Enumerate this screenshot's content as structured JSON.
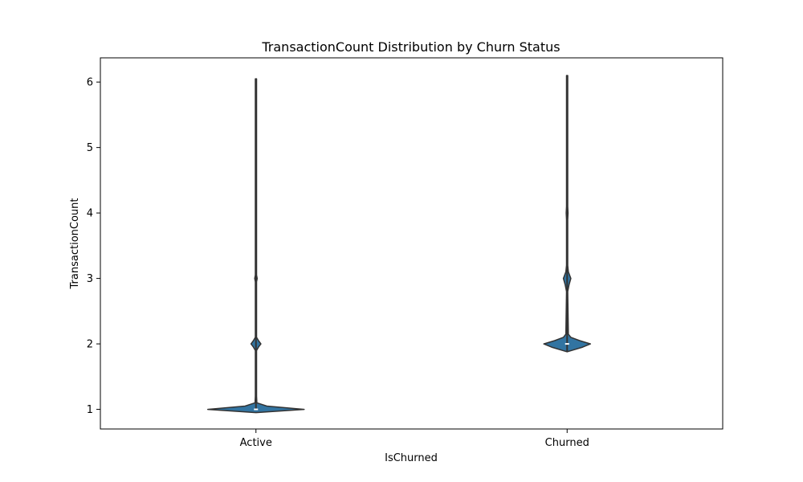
{
  "chart_data": {
    "type": "violin",
    "title": "TransactionCount Distribution by Churn Status",
    "xlabel": "IsChurned",
    "ylabel": "TransactionCount",
    "categories": [
      "Active",
      "Churned"
    ],
    "ylim": [
      0.7,
      6.37
    ],
    "yticks": [
      1,
      2,
      3,
      4,
      5,
      6
    ],
    "grid": false,
    "legend": "none",
    "colors": {
      "fill": "#3274a1",
      "edge": "#333333",
      "median": "#ffffff"
    },
    "series": [
      {
        "category": "Active",
        "min": 1,
        "max": 6.05,
        "median": 1,
        "density_profile": [
          [
            1.0,
            0.155
          ],
          [
            1.05,
            0.035
          ],
          [
            1.1,
            0.003
          ],
          [
            1.2,
            0.002
          ],
          [
            1.9,
            0.002
          ],
          [
            1.95,
            0.008
          ],
          [
            2.0,
            0.016
          ],
          [
            2.05,
            0.008
          ],
          [
            2.1,
            0.002
          ],
          [
            2.95,
            0.002
          ],
          [
            3.0,
            0.004
          ],
          [
            3.05,
            0.002
          ],
          [
            3.1,
            0.002
          ],
          [
            6.05,
            0.002
          ]
        ],
        "density_profile_low": [
          [
            1.0,
            0.155
          ],
          [
            0.95,
            0.0
          ]
        ]
      },
      {
        "category": "Churned",
        "min": 1.88,
        "max": 6.1,
        "median": 2,
        "density_profile": [
          [
            2.0,
            0.075
          ],
          [
            2.05,
            0.04
          ],
          [
            2.1,
            0.012
          ],
          [
            2.15,
            0.004
          ],
          [
            2.8,
            0.002
          ],
          [
            2.9,
            0.006
          ],
          [
            3.0,
            0.012
          ],
          [
            3.1,
            0.004
          ],
          [
            3.2,
            0.002
          ],
          [
            3.9,
            0.002
          ],
          [
            4.0,
            0.003
          ],
          [
            4.1,
            0.002
          ],
          [
            6.1,
            0.002
          ]
        ],
        "density_profile_low": [
          [
            2.0,
            0.075
          ],
          [
            1.95,
            0.05
          ],
          [
            1.9,
            0.015
          ],
          [
            1.88,
            0.0
          ]
        ]
      }
    ]
  }
}
